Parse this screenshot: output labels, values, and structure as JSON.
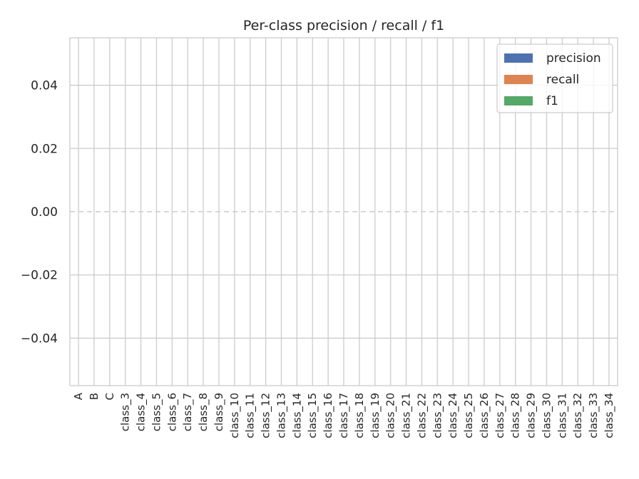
{
  "chart_data": {
    "type": "bar",
    "title": "Per-class precision / recall / f1",
    "xlabel": "",
    "ylabel": "",
    "categories": [
      "A",
      "B",
      "C",
      "class_3",
      "class_4",
      "class_5",
      "class_6",
      "class_7",
      "class_8",
      "class_9",
      "class_10",
      "class_11",
      "class_12",
      "class_13",
      "class_14",
      "class_15",
      "class_16",
      "class_17",
      "class_18",
      "class_19",
      "class_20",
      "class_21",
      "class_22",
      "class_23",
      "class_24",
      "class_25",
      "class_26",
      "class_27",
      "class_28",
      "class_29",
      "class_30",
      "class_31",
      "class_32",
      "class_33",
      "class_34"
    ],
    "series": [
      {
        "name": "precision",
        "color": "#4c72b0",
        "values": [
          0,
          0,
          0,
          0,
          0,
          0,
          0,
          0,
          0,
          0,
          0,
          0,
          0,
          0,
          0,
          0,
          0,
          0,
          0,
          0,
          0,
          0,
          0,
          0,
          0,
          0,
          0,
          0,
          0,
          0,
          0,
          0,
          0,
          0,
          0
        ]
      },
      {
        "name": "recall",
        "color": "#dd8452",
        "values": [
          0,
          0,
          0,
          0,
          0,
          0,
          0,
          0,
          0,
          0,
          0,
          0,
          0,
          0,
          0,
          0,
          0,
          0,
          0,
          0,
          0,
          0,
          0,
          0,
          0,
          0,
          0,
          0,
          0,
          0,
          0,
          0,
          0,
          0,
          0
        ]
      },
      {
        "name": "f1",
        "color": "#55a868",
        "values": [
          0,
          0,
          0,
          0,
          0,
          0,
          0,
          0,
          0,
          0,
          0,
          0,
          0,
          0,
          0,
          0,
          0,
          0,
          0,
          0,
          0,
          0,
          0,
          0,
          0,
          0,
          0,
          0,
          0,
          0,
          0,
          0,
          0,
          0,
          0
        ]
      }
    ],
    "ylim": [
      -0.055,
      0.055
    ],
    "yticks": [
      0.04,
      0.02,
      0.0,
      -0.02,
      -0.04
    ],
    "ytick_labels": [
      "0.04",
      "0.02",
      "0.00",
      "−0.02",
      "−0.04"
    ],
    "grid": true,
    "reference_line": 0,
    "legend_position": "top-right"
  }
}
